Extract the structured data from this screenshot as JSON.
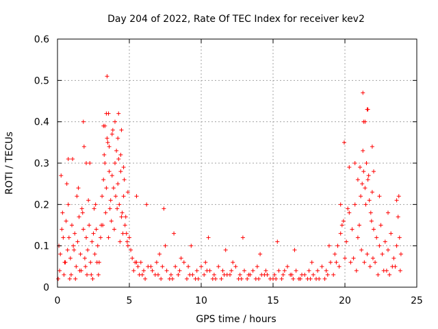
{
  "chart_data": {
    "type": "scatter",
    "title": "Day 204 of 2022, Rate Of TEC Index for receiver kev2",
    "xlabel": "GPS time / hours",
    "ylabel": "ROTI / TECUs",
    "xlim": [
      0,
      25
    ],
    "ylim": [
      0,
      0.6
    ],
    "xticks": [
      "0",
      "5",
      "10",
      "15",
      "20",
      "25"
    ],
    "yticks": [
      "0",
      "0.1",
      "0.2",
      "0.3",
      "0.4",
      "0.5",
      "0.6"
    ],
    "grid": true,
    "legend": "none",
    "marker": "+",
    "marker_color": "#ff0000",
    "series": [
      {
        "x": [
          0.1,
          0.2,
          0.3,
          0.4,
          0.5,
          0.6,
          0.7,
          0.8,
          0.9,
          1.0,
          1.1,
          1.2,
          1.3,
          1.4,
          1.5,
          1.6,
          1.7,
          1.8,
          1.9,
          2.0,
          2.1,
          2.2,
          2.3,
          2.4,
          2.5,
          2.6,
          2.7,
          2.8,
          2.9,
          3.0,
          3.1,
          3.2,
          3.3,
          3.4,
          3.5,
          3.6,
          3.7,
          3.8,
          3.9,
          4.0,
          4.1,
          4.2,
          4.3,
          4.4,
          4.5,
          4.6,
          4.7,
          4.8,
          4.9,
          5.0,
          5.2,
          5.4,
          5.6,
          5.8,
          6.0,
          6.3,
          6.6,
          6.9,
          7.1,
          7.3,
          7.6,
          7.9,
          8.2,
          8.5,
          8.8,
          9.1,
          9.4,
          9.7,
          10.0,
          10.3,
          10.6,
          10.9,
          11.2,
          11.5,
          11.8,
          12.1,
          12.4,
          12.7,
          13.0,
          13.3,
          13.6,
          13.9,
          14.2,
          14.5,
          14.8,
          15.1,
          15.4,
          15.7,
          16.0,
          16.3,
          16.6,
          16.9,
          17.2,
          17.5,
          17.8,
          18.1,
          18.4,
          18.7,
          19.0,
          19.3,
          19.5,
          19.7,
          19.9,
          20.1,
          20.3,
          20.5,
          20.7,
          20.9,
          21.0,
          21.1,
          21.2,
          21.3,
          21.4,
          21.5,
          21.6,
          21.7,
          21.8,
          21.9,
          22.0,
          22.2,
          22.4,
          22.6,
          22.8,
          23.0,
          23.2,
          23.4,
          23.6,
          23.8,
          23.9,
          0.15,
          0.35,
          0.55,
          0.75,
          0.95,
          1.15,
          1.35,
          1.55,
          1.75,
          1.95,
          2.15,
          2.35,
          2.55,
          2.75,
          3.05,
          3.25,
          3.45,
          3.65,
          3.85,
          4.05,
          4.25,
          4.45,
          4.65,
          4.85,
          5.1,
          5.5,
          5.9,
          6.5,
          7.0,
          7.5,
          8.0,
          8.6,
          9.2,
          9.8,
          10.4,
          11.0,
          11.6,
          12.2,
          12.8,
          13.4,
          14.0,
          14.6,
          15.2,
          15.8,
          16.4,
          17.0,
          17.6,
          18.2,
          18.8,
          19.4,
          19.8,
          20.2,
          20.6,
          21.05,
          21.25,
          21.45,
          21.65,
          21.85,
          22.1,
          22.5,
          22.9,
          23.3,
          23.7,
          0.05,
          0.45,
          0.85,
          1.25,
          1.65,
          2.05,
          2.45,
          2.85,
          3.15,
          3.35,
          3.55,
          3.75,
          3.95,
          4.15,
          4.35,
          4.55,
          4.75,
          5.3,
          5.7,
          6.1,
          6.8,
          7.2,
          7.8,
          8.4,
          9.0,
          9.6,
          10.2,
          10.8,
          11.4,
          12.0,
          12.6,
          13.2,
          13.8,
          14.4,
          15.0,
          15.6,
          16.2,
          16.8,
          17.4,
          18.0,
          18.6,
          19.2,
          19.6,
          20.0,
          20.4,
          20.8,
          21.15,
          21.35,
          21.55,
          21.75,
          21.95,
          22.3,
          22.7,
          23.1,
          23.5,
          23.85,
          0.25,
          0.65,
          1.05,
          1.45,
          1.85,
          2.25,
          2.65,
          3.2,
          3.4,
          3.6,
          3.8,
          4.0,
          4.2,
          4.4,
          4.6,
          4.9,
          5.5,
          6.2,
          7.4,
          8.1,
          9.3,
          10.5,
          11.7,
          12.9,
          14.1,
          15.3,
          16.5,
          17.7,
          18.9,
          19.7,
          20.3,
          20.9,
          21.3,
          21.6,
          21.9,
          22.4,
          23.0,
          23.6,
          3.45,
          1.8,
          3.55,
          4.25,
          21.25,
          21.55,
          21.4,
          19.95,
          0.75,
          2.0,
          3.3,
          4.45,
          20.7,
          22.0,
          23.75
        ],
        "y": [
          0.1,
          0.08,
          0.14,
          0.12,
          0.06,
          0.16,
          0.09,
          0.12,
          0.07,
          0.15,
          0.1,
          0.13,
          0.05,
          0.11,
          0.17,
          0.08,
          0.19,
          0.14,
          0.07,
          0.12,
          0.09,
          0.15,
          0.06,
          0.11,
          0.13,
          0.08,
          0.14,
          0.1,
          0.06,
          0.12,
          0.22,
          0.26,
          0.3,
          0.24,
          0.35,
          0.28,
          0.21,
          0.27,
          0.24,
          0.3,
          0.33,
          0.25,
          0.2,
          0.28,
          0.18,
          0.22,
          0.15,
          0.13,
          0.1,
          0.12,
          0.07,
          0.06,
          0.05,
          0.06,
          0.04,
          0.05,
          0.04,
          0.06,
          0.08,
          0.05,
          0.04,
          0.03,
          0.05,
          0.04,
          0.06,
          0.05,
          0.03,
          0.04,
          0.05,
          0.06,
          0.04,
          0.03,
          0.05,
          0.04,
          0.03,
          0.04,
          0.05,
          0.03,
          0.04,
          0.03,
          0.04,
          0.05,
          0.03,
          0.04,
          0.02,
          0.03,
          0.04,
          0.03,
          0.05,
          0.03,
          0.04,
          0.02,
          0.03,
          0.04,
          0.03,
          0.04,
          0.05,
          0.04,
          0.06,
          0.08,
          0.1,
          0.13,
          0.16,
          0.11,
          0.18,
          0.14,
          0.2,
          0.12,
          0.15,
          0.22,
          0.25,
          0.28,
          0.24,
          0.3,
          0.26,
          0.21,
          0.18,
          0.23,
          0.14,
          0.12,
          0.1,
          0.08,
          0.11,
          0.09,
          0.13,
          0.07,
          0.1,
          0.12,
          0.08,
          0.04,
          0.18,
          0.06,
          0.2,
          0.03,
          0.09,
          0.22,
          0.04,
          0.18,
          0.05,
          0.21,
          0.03,
          0.19,
          0.06,
          0.15,
          0.32,
          0.36,
          0.19,
          0.38,
          0.22,
          0.31,
          0.17,
          0.26,
          0.11,
          0.09,
          0.06,
          0.03,
          0.05,
          0.03,
          0.1,
          0.02,
          0.07,
          0.03,
          0.02,
          0.04,
          0.02,
          0.03,
          0.06,
          0.02,
          0.03,
          0.02,
          0.03,
          0.02,
          0.04,
          0.02,
          0.03,
          0.02,
          0.02,
          0.03,
          0.06,
          0.15,
          0.19,
          0.07,
          0.29,
          0.33,
          0.2,
          0.27,
          0.16,
          0.06,
          0.15,
          0.04,
          0.05,
          0.17,
          0.02,
          0.03,
          0.02,
          0.02,
          0.04,
          0.03,
          0.02,
          0.03,
          0.15,
          0.18,
          0.12,
          0.16,
          0.14,
          0.19,
          0.11,
          0.13,
          0.17,
          0.04,
          0.03,
          0.02,
          0.03,
          0.02,
          0.02,
          0.03,
          0.02,
          0.02,
          0.03,
          0.02,
          0.02,
          0.03,
          0.02,
          0.02,
          0.02,
          0.03,
          0.02,
          0.02,
          0.03,
          0.02,
          0.02,
          0.02,
          0.02,
          0.03,
          0.05,
          0.07,
          0.06,
          0.04,
          0.09,
          0.06,
          0.08,
          0.05,
          0.07,
          0.03,
          0.04,
          0.03,
          0.05,
          0.04,
          0.27,
          0.25,
          0.31,
          0.24,
          0.34,
          0.3,
          0.2,
          0.39,
          0.42,
          0.34,
          0.37,
          0.4,
          0.36,
          0.32,
          0.29,
          0.23,
          0.22,
          0.2,
          0.19,
          0.13,
          0.1,
          0.12,
          0.09,
          0.12,
          0.08,
          0.11,
          0.09,
          0.06,
          0.1,
          0.2,
          0.29,
          0.26,
          0.4,
          0.43,
          0.34,
          0.22,
          0.18,
          0.21,
          0.51,
          0.4,
          0.42,
          0.42,
          0.47,
          0.43,
          0.4,
          0.35,
          0.31,
          0.3,
          0.39,
          0.38,
          0.3,
          0.28,
          0.22
        ]
      }
    ]
  }
}
